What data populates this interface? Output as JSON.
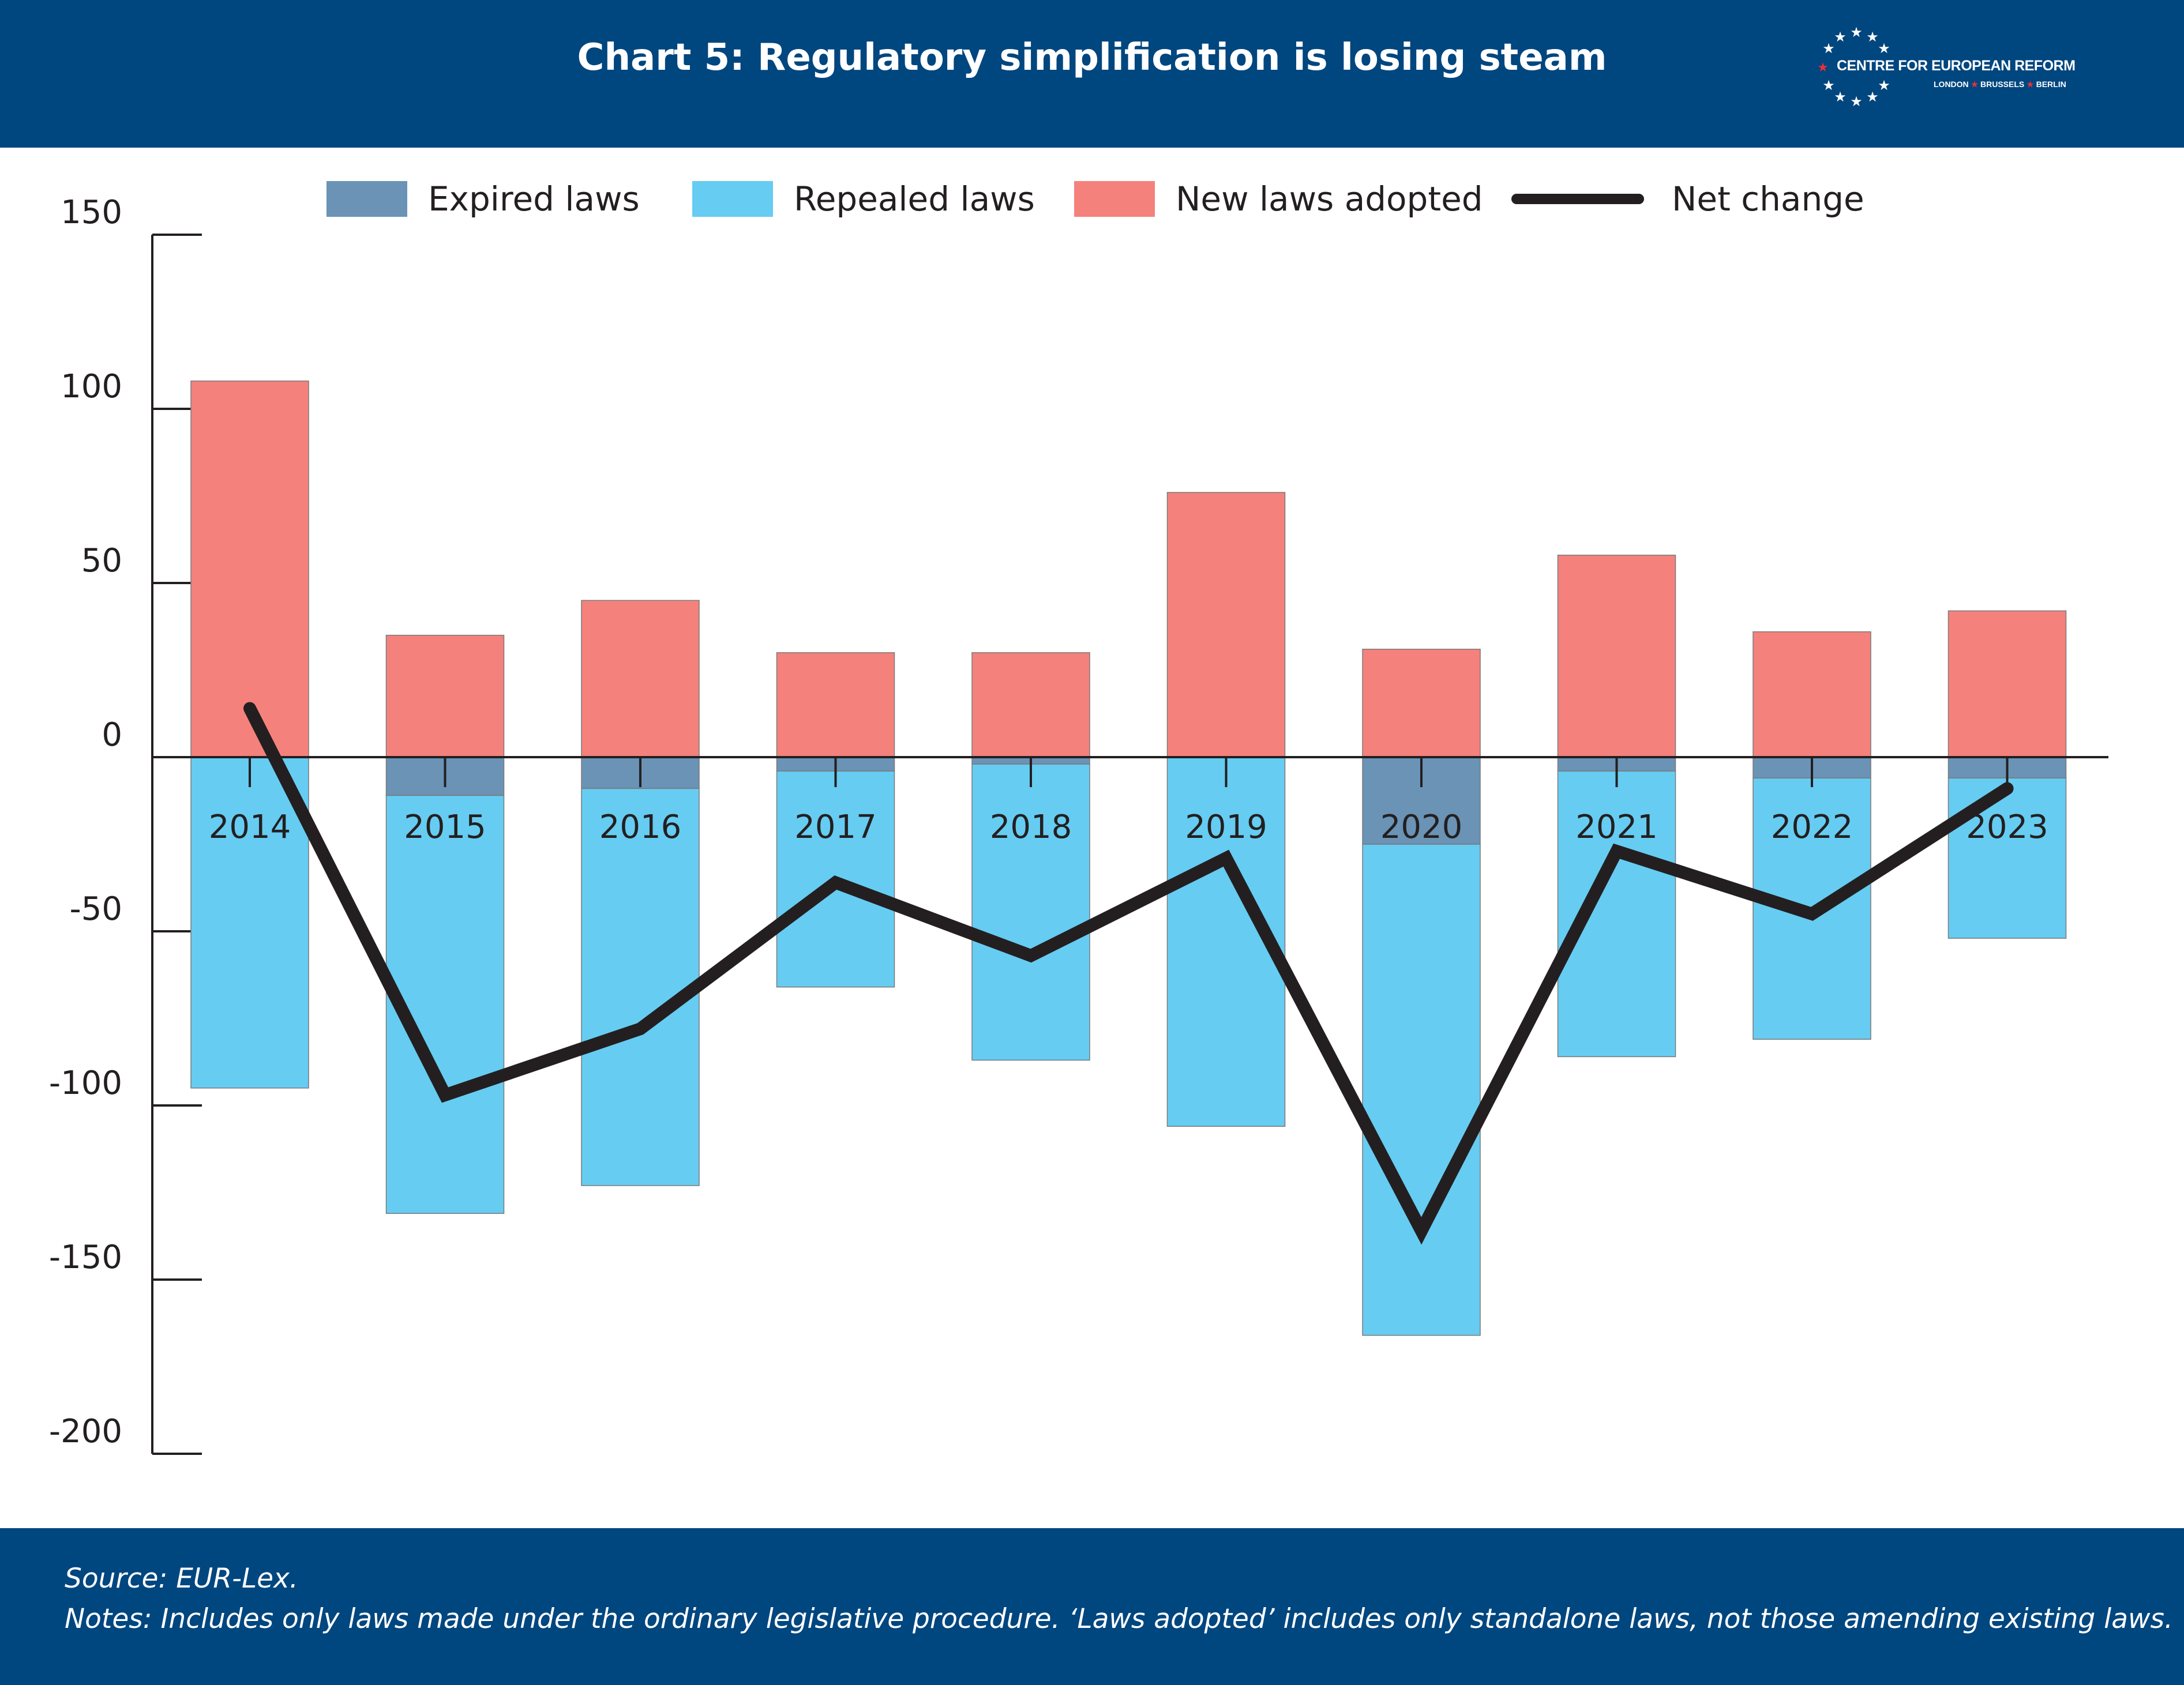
{
  "header": {
    "title": "Chart 5: Regulatory simplification is losing steam",
    "logo_text": "CENTRE FOR EUROPEAN REFORM",
    "logo_cities": [
      "LONDON",
      "BRUSSELS",
      "BERLIN"
    ]
  },
  "footer": {
    "source": "Source: EUR-Lex.",
    "notes": "Notes: Includes only laws made under the ordinary legislative procedure. ‘Laws adopted’ includes only standalone laws, not those amending existing laws."
  },
  "legend": {
    "expired": "Expired laws",
    "repealed": "Repealed laws",
    "new": "New laws adopted",
    "net": "Net change"
  },
  "colors": {
    "header_bg": "#00467f",
    "expired": "#6a93b5",
    "repealed": "#66ccf2",
    "new": "#f5817c",
    "net": "#231f20"
  },
  "chart_data": {
    "type": "bar",
    "stacked": true,
    "categories": [
      "2014",
      "2015",
      "2016",
      "2017",
      "2018",
      "2019",
      "2020",
      "2021",
      "2022",
      "2023"
    ],
    "series": [
      {
        "name": "Expired laws",
        "type": "bar",
        "values": [
          0,
          -11,
          -9,
          -4,
          -2,
          0,
          -25,
          -4,
          -6,
          -6
        ]
      },
      {
        "name": "Repealed laws",
        "type": "bar",
        "values": [
          -95,
          -120,
          -114,
          -62,
          -85,
          -106,
          -141,
          -82,
          -75,
          -46
        ]
      },
      {
        "name": "New laws adopted",
        "type": "bar",
        "values": [
          108,
          35,
          45,
          30,
          30,
          76,
          31,
          58,
          36,
          42
        ]
      },
      {
        "name": "Net change",
        "type": "line",
        "values": [
          14,
          -97,
          -78,
          -36,
          -57,
          -29,
          -136,
          -27,
          -45,
          -9
        ]
      }
    ],
    "ylim": [
      -200,
      150
    ],
    "yticks": [
      150,
      100,
      50,
      0,
      -50,
      -100,
      -150,
      -200
    ],
    "legend_position": "top",
    "grid": false
  }
}
